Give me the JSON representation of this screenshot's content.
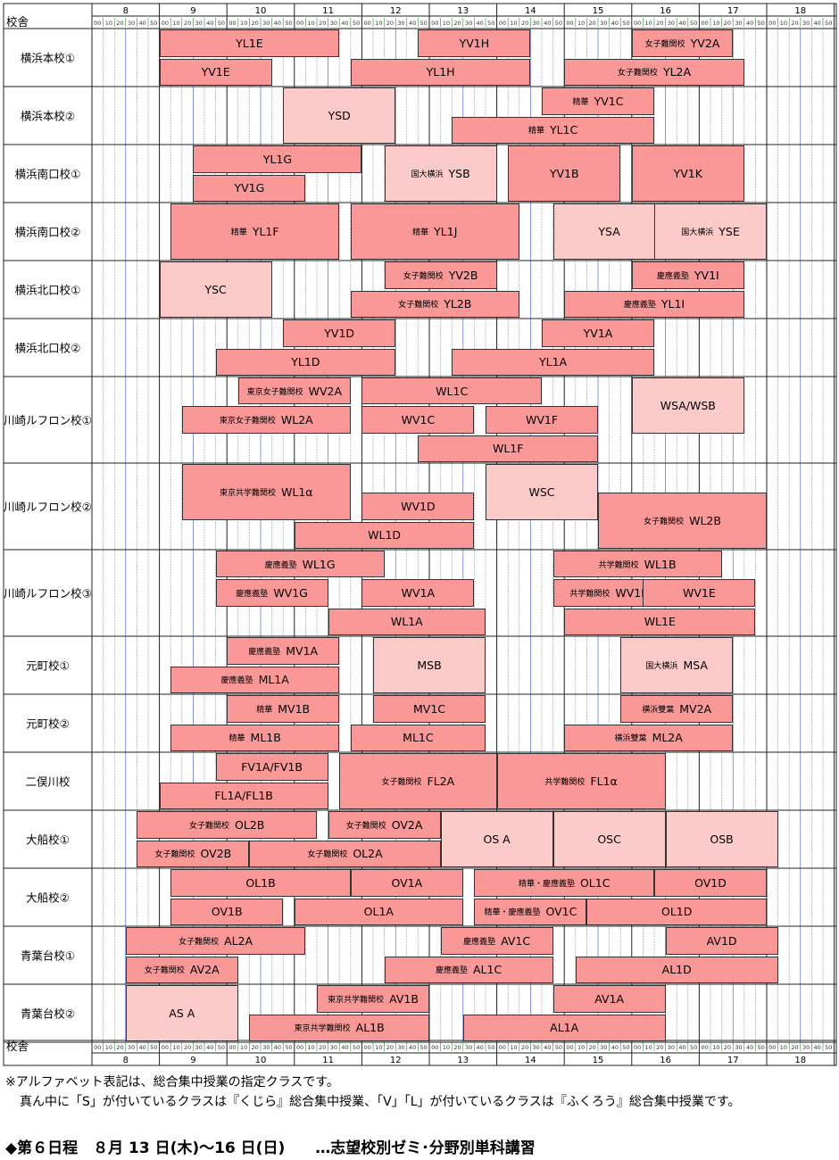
{
  "header": {
    "campus_label": "校舎",
    "footer_label": "校舎"
  },
  "hours": [
    "8",
    "9",
    "10",
    "11",
    "12",
    "13",
    "14",
    "15",
    "16",
    "17",
    "18"
  ],
  "minutes": [
    "00",
    "10",
    "20",
    "30",
    "40",
    "50"
  ],
  "colors": {
    "dark": "#fa9898",
    "light": "#fdcaca",
    "grid": "#999999",
    "half": "#3355cc"
  },
  "rows": [
    {
      "name": "横浜本校①",
      "lanes": 2,
      "blocks": [
        {
          "label": "YL1E",
          "start": "9:00",
          "end": "11:40",
          "lane": 0,
          "span": 1,
          "shade": "dark"
        },
        {
          "label": "YV1H",
          "start": "12:50",
          "end": "14:30",
          "lane": 0,
          "span": 1,
          "shade": "dark"
        },
        {
          "prefix": "女子難関校",
          "label": "YV2A",
          "start": "16:00",
          "end": "17:30",
          "lane": 0,
          "span": 1,
          "shade": "dark"
        },
        {
          "label": "YV1E",
          "start": "9:00",
          "end": "10:40",
          "lane": 1,
          "span": 1,
          "shade": "dark"
        },
        {
          "label": "YL1H",
          "start": "11:50",
          "end": "14:30",
          "lane": 1,
          "span": 1,
          "shade": "dark"
        },
        {
          "prefix": "女子難関校",
          "label": "YL2A",
          "start": "15:00",
          "end": "17:40",
          "lane": 1,
          "span": 1,
          "shade": "dark"
        }
      ]
    },
    {
      "name": "横浜本校②",
      "lanes": 2,
      "blocks": [
        {
          "label": "YSD",
          "start": "10:50",
          "end": "12:30",
          "lane": 0,
          "span": 2,
          "shade": "light"
        },
        {
          "prefix": "精華",
          "label": "YV1C",
          "start": "14:40",
          "end": "16:20",
          "lane": 0,
          "span": 1,
          "shade": "dark"
        },
        {
          "prefix": "精華",
          "label": "YL1C",
          "start": "13:20",
          "end": "16:20",
          "lane": 1,
          "span": 1,
          "shade": "dark"
        }
      ]
    },
    {
      "name": "横浜南口校①",
      "lanes": 2,
      "blocks": [
        {
          "label": "YL1G",
          "start": "9:30",
          "end": "12:00",
          "lane": 0,
          "span": 1,
          "shade": "dark"
        },
        {
          "prefix": "国大横浜",
          "label": "YSB",
          "start": "12:20",
          "end": "14:00",
          "lane": 0,
          "span": 2,
          "shade": "light"
        },
        {
          "label": "YV1B",
          "start": "14:10",
          "end": "15:50",
          "lane": 0,
          "span": 2,
          "shade": "dark"
        },
        {
          "label": "YV1K",
          "start": "16:00",
          "end": "17:40",
          "lane": 0,
          "span": 2,
          "shade": "dark"
        },
        {
          "label": "YV1G",
          "start": "9:30",
          "end": "11:10",
          "lane": 1,
          "span": 1,
          "shade": "dark"
        }
      ]
    },
    {
      "name": "横浜南口校②",
      "lanes": 2,
      "blocks": [
        {
          "prefix": "精華",
          "label": "YL1F",
          "start": "9:10",
          "end": "11:40",
          "lane": 0,
          "span": 2,
          "shade": "dark"
        },
        {
          "prefix": "精華",
          "label": "YL1J",
          "start": "11:50",
          "end": "14:20",
          "lane": 0,
          "span": 2,
          "shade": "dark"
        },
        {
          "label": "YSA",
          "start": "14:50",
          "end": "16:30",
          "lane": 0,
          "span": 2,
          "shade": "light"
        },
        {
          "prefix": "国大横浜",
          "label": "YSE",
          "start": "16:20",
          "end": "18:00",
          "lane": 0,
          "span": 2,
          "shade": "light"
        }
      ]
    },
    {
      "name": "横浜北口校①",
      "lanes": 2,
      "blocks": [
        {
          "label": "YSC",
          "start": "9:00",
          "end": "10:40",
          "lane": 0,
          "span": 2,
          "shade": "light"
        },
        {
          "prefix": "女子難関校",
          "label": "YV2B",
          "start": "12:20",
          "end": "14:00",
          "lane": 0,
          "span": 1,
          "shade": "dark"
        },
        {
          "prefix": "慶應義塾",
          "label": "YV1I",
          "start": "16:00",
          "end": "17:40",
          "lane": 0,
          "span": 1,
          "shade": "dark"
        },
        {
          "prefix": "女子難関校",
          "label": "YL2B",
          "start": "11:50",
          "end": "14:20",
          "lane": 1,
          "span": 1,
          "shade": "dark"
        },
        {
          "prefix": "慶應義塾",
          "label": "YL1I",
          "start": "15:00",
          "end": "17:40",
          "lane": 1,
          "span": 1,
          "shade": "dark"
        }
      ]
    },
    {
      "name": "横浜北口校②",
      "lanes": 2,
      "blocks": [
        {
          "label": "YV1D",
          "start": "10:50",
          "end": "12:30",
          "lane": 0,
          "span": 1,
          "shade": "dark"
        },
        {
          "label": "YV1A",
          "start": "14:40",
          "end": "16:20",
          "lane": 0,
          "span": 1,
          "shade": "dark"
        },
        {
          "label": "YL1D",
          "start": "9:50",
          "end": "12:30",
          "lane": 1,
          "span": 1,
          "shade": "dark"
        },
        {
          "label": "YL1A",
          "start": "13:20",
          "end": "16:20",
          "lane": 1,
          "span": 1,
          "shade": "dark"
        }
      ]
    },
    {
      "name": "川崎ルフロン校①",
      "lanes": 3,
      "blocks": [
        {
          "prefix": "東京女子難関校",
          "label": "WV2A",
          "start": "10:10",
          "end": "11:50",
          "lane": 0,
          "span": 1,
          "shade": "dark"
        },
        {
          "label": "WL1C",
          "start": "12:00",
          "end": "14:40",
          "lane": 0,
          "span": 1,
          "shade": "dark"
        },
        {
          "label": "WSA/WSB",
          "start": "16:00",
          "end": "17:40",
          "lane": 0,
          "span": 2,
          "shade": "light"
        },
        {
          "prefix": "東京女子難関校",
          "label": "WL2A",
          "start": "9:20",
          "end": "11:50",
          "lane": 1,
          "span": 1,
          "shade": "dark"
        },
        {
          "label": "WV1C",
          "start": "12:00",
          "end": "13:40",
          "lane": 1,
          "span": 1,
          "shade": "dark"
        },
        {
          "label": "WV1F",
          "start": "13:50",
          "end": "15:30",
          "lane": 1,
          "span": 1,
          "shade": "dark"
        },
        {
          "label": "WL1F",
          "start": "12:50",
          "end": "15:30",
          "lane": 2,
          "span": 1,
          "shade": "dark"
        }
      ]
    },
    {
      "name": "川崎ルフロン校②",
      "lanes": 3,
      "blocks": [
        {
          "prefix": "東京共学難関校",
          "label": "WL1α",
          "start": "9:20",
          "end": "11:50",
          "lane": 0,
          "span": 2,
          "shade": "dark"
        },
        {
          "label": "WSC",
          "start": "13:50",
          "end": "15:30",
          "lane": 0,
          "span": 2,
          "shade": "light"
        },
        {
          "label": "WV1D",
          "start": "12:00",
          "end": "13:40",
          "lane": 1,
          "span": 1,
          "shade": "dark"
        },
        {
          "prefix": "女子難関校",
          "label": "WL2B",
          "start": "15:30",
          "end": "18:00",
          "lane": 1,
          "span": 2,
          "shade": "dark"
        },
        {
          "label": "WL1D",
          "start": "11:00",
          "end": "13:40",
          "lane": 2,
          "span": 1,
          "shade": "dark"
        }
      ]
    },
    {
      "name": "川崎ルフロン校③",
      "lanes": 3,
      "blocks": [
        {
          "prefix": "慶應義塾",
          "label": "WL1G",
          "start": "9:50",
          "end": "12:20",
          "lane": 0,
          "span": 1,
          "shade": "dark"
        },
        {
          "prefix": "共学難関校",
          "label": "WL1B",
          "start": "14:50",
          "end": "17:20",
          "lane": 0,
          "span": 1,
          "shade": "dark"
        },
        {
          "prefix": "慶應義塾",
          "label": "WV1G",
          "start": "9:50",
          "end": "11:30",
          "lane": 1,
          "span": 1,
          "shade": "dark"
        },
        {
          "label": "WV1A",
          "start": "12:00",
          "end": "13:40",
          "lane": 1,
          "span": 1,
          "shade": "dark"
        },
        {
          "prefix": "共学難関校",
          "label": "WV1B",
          "start": "14:50",
          "end": "16:30",
          "lane": 1,
          "span": 1,
          "shade": "dark"
        },
        {
          "label": "WV1E",
          "start": "16:10",
          "end": "17:50",
          "lane": 1,
          "span": 1,
          "shade": "dark"
        },
        {
          "label": "WL1A",
          "start": "11:30",
          "end": "13:50",
          "lane": 2,
          "span": 1,
          "shade": "dark"
        },
        {
          "label": "WL1E",
          "start": "15:00",
          "end": "17:50",
          "lane": 2,
          "span": 1,
          "shade": "dark"
        }
      ]
    },
    {
      "name": "元町校①",
      "lanes": 2,
      "blocks": [
        {
          "prefix": "慶應義塾",
          "label": "MV1A",
          "start": "10:00",
          "end": "11:40",
          "lane": 0,
          "span": 1,
          "shade": "dark"
        },
        {
          "label": "MSB",
          "start": "12:10",
          "end": "13:50",
          "lane": 0,
          "span": 2,
          "shade": "light"
        },
        {
          "prefix": "国大横浜",
          "label": "MSA",
          "start": "15:50",
          "end": "17:30",
          "lane": 0,
          "span": 2,
          "shade": "light"
        },
        {
          "prefix": "慶應義塾",
          "label": "ML1A",
          "start": "9:10",
          "end": "11:40",
          "lane": 1,
          "span": 1,
          "shade": "dark"
        }
      ]
    },
    {
      "name": "元町校②",
      "lanes": 2,
      "blocks": [
        {
          "prefix": "精華",
          "label": "MV1B",
          "start": "10:00",
          "end": "11:40",
          "lane": 0,
          "span": 1,
          "shade": "dark"
        },
        {
          "label": "MV1C",
          "start": "12:10",
          "end": "13:50",
          "lane": 0,
          "span": 1,
          "shade": "dark"
        },
        {
          "prefix": "横浜雙葉",
          "label": "MV2A",
          "start": "15:50",
          "end": "17:30",
          "lane": 0,
          "span": 1,
          "shade": "dark"
        },
        {
          "prefix": "精華",
          "label": "ML1B",
          "start": "9:10",
          "end": "11:40",
          "lane": 1,
          "span": 1,
          "shade": "dark"
        },
        {
          "label": "ML1C",
          "start": "11:50",
          "end": "13:50",
          "lane": 1,
          "span": 1,
          "shade": "dark"
        },
        {
          "prefix": "横浜雙葉",
          "label": "ML2A",
          "start": "15:00",
          "end": "17:30",
          "lane": 1,
          "span": 1,
          "shade": "dark"
        }
      ]
    },
    {
      "name": "二俣川校",
      "lanes": 2,
      "blocks": [
        {
          "label": "FV1A/FV1B",
          "start": "9:50",
          "end": "11:30",
          "lane": 0,
          "span": 1,
          "shade": "dark"
        },
        {
          "prefix": "女子難関校",
          "label": "FL2A",
          "start": "11:40",
          "end": "14:00",
          "lane": 0,
          "span": 2,
          "shade": "dark"
        },
        {
          "prefix": "共学難関校",
          "label": "FL1α",
          "start": "14:00",
          "end": "16:30",
          "lane": 0,
          "span": 2,
          "shade": "dark"
        },
        {
          "label": "FL1A/FL1B",
          "start": "9:00",
          "end": "11:30",
          "lane": 1,
          "span": 1,
          "shade": "dark"
        }
      ]
    },
    {
      "name": "大船校①",
      "lanes": 2,
      "blocks": [
        {
          "prefix": "女子難関校",
          "label": "OL2B",
          "start": "8:40",
          "end": "11:20",
          "lane": 0,
          "span": 1,
          "shade": "dark"
        },
        {
          "prefix": "女子難関校",
          "label": "OV2A",
          "start": "11:30",
          "end": "13:10",
          "lane": 0,
          "span": 1,
          "shade": "dark"
        },
        {
          "label": "OS A",
          "start": "13:10",
          "end": "14:50",
          "lane": 0,
          "span": 2,
          "shade": "light"
        },
        {
          "label": "OSC",
          "start": "14:50",
          "end": "16:30",
          "lane": 0,
          "span": 2,
          "shade": "light"
        },
        {
          "label": "OSB",
          "start": "16:30",
          "end": "18:10",
          "lane": 0,
          "span": 2,
          "shade": "light"
        },
        {
          "prefix": "女子難関校",
          "label": "OV2B",
          "start": "8:40",
          "end": "10:20",
          "lane": 1,
          "span": 1,
          "shade": "dark"
        },
        {
          "prefix": "女子難関校",
          "label": "OL2A",
          "start": "10:20",
          "end": "13:10",
          "lane": 1,
          "span": 1,
          "shade": "dark"
        }
      ]
    },
    {
      "name": "大船校②",
      "lanes": 2,
      "blocks": [
        {
          "label": "OL1B",
          "start": "9:10",
          "end": "11:50",
          "lane": 0,
          "span": 1,
          "shade": "dark"
        },
        {
          "label": "OV1A",
          "start": "11:50",
          "end": "13:30",
          "lane": 0,
          "span": 1,
          "shade": "dark"
        },
        {
          "prefix": "精華・慶應義塾",
          "label": "OL1C",
          "start": "13:40",
          "end": "16:20",
          "lane": 0,
          "span": 1,
          "shade": "dark"
        },
        {
          "label": "OV1D",
          "start": "16:20",
          "end": "18:00",
          "lane": 0,
          "span": 1,
          "shade": "dark"
        },
        {
          "label": "OV1B",
          "start": "9:10",
          "end": "10:50",
          "lane": 1,
          "span": 1,
          "shade": "dark"
        },
        {
          "label": "OL1A",
          "start": "11:00",
          "end": "13:30",
          "lane": 1,
          "span": 1,
          "shade": "dark"
        },
        {
          "prefix": "精華・慶應義塾",
          "label": "OV1C",
          "start": "13:40",
          "end": "15:20",
          "lane": 1,
          "span": 1,
          "shade": "dark"
        },
        {
          "label": "OL1D",
          "start": "15:20",
          "end": "18:00",
          "lane": 1,
          "span": 1,
          "shade": "dark"
        }
      ]
    },
    {
      "name": "青葉台校①",
      "lanes": 2,
      "blocks": [
        {
          "prefix": "女子難関校",
          "label": "AL2A",
          "start": "8:30",
          "end": "11:10",
          "lane": 0,
          "span": 1,
          "shade": "dark"
        },
        {
          "prefix": "慶應義塾",
          "label": "AV1C",
          "start": "13:10",
          "end": "14:50",
          "lane": 0,
          "span": 1,
          "shade": "dark"
        },
        {
          "label": "AV1D",
          "start": "16:30",
          "end": "18:10",
          "lane": 0,
          "span": 1,
          "shade": "dark"
        },
        {
          "prefix": "女子難関校",
          "label": "AV2A",
          "start": "8:30",
          "end": "10:10",
          "lane": 1,
          "span": 1,
          "shade": "dark"
        },
        {
          "prefix": "慶應義塾",
          "label": "AL1C",
          "start": "12:20",
          "end": "14:50",
          "lane": 1,
          "span": 1,
          "shade": "dark"
        },
        {
          "label": "AL1D",
          "start": "15:10",
          "end": "18:10",
          "lane": 1,
          "span": 1,
          "shade": "dark"
        }
      ]
    },
    {
      "name": "青葉台校②",
      "lanes": 2,
      "blocks": [
        {
          "label": "AS A",
          "start": "8:30",
          "end": "10:10",
          "lane": 0,
          "span": 2,
          "shade": "light"
        },
        {
          "prefix": "東京共学難関校",
          "label": "AV1B",
          "start": "11:20",
          "end": "13:00",
          "lane": 0,
          "span": 1,
          "shade": "dark"
        },
        {
          "label": "AV1A",
          "start": "14:50",
          "end": "16:30",
          "lane": 0,
          "span": 1,
          "shade": "dark"
        },
        {
          "prefix": "東京共学難関校",
          "label": "AL1B",
          "start": "10:20",
          "end": "13:00",
          "lane": 1,
          "span": 1,
          "shade": "dark"
        },
        {
          "label": "AL1A",
          "start": "13:30",
          "end": "16:30",
          "lane": 1,
          "span": 1,
          "shade": "dark"
        }
      ]
    }
  ],
  "notes": [
    "※アルファベット表記は、総合集中授業の指定クラスです。",
    "真ん中に「S」が付いているクラスは『くじら』総合集中授業、「V」「L」が付いているクラスは『ふくろう』総合集中授業です。"
  ],
  "schedule_title": "◆第６日程　８月 13 日(木)～16 日(日)　　…志望校別ゼミ･分野別単科講習"
}
